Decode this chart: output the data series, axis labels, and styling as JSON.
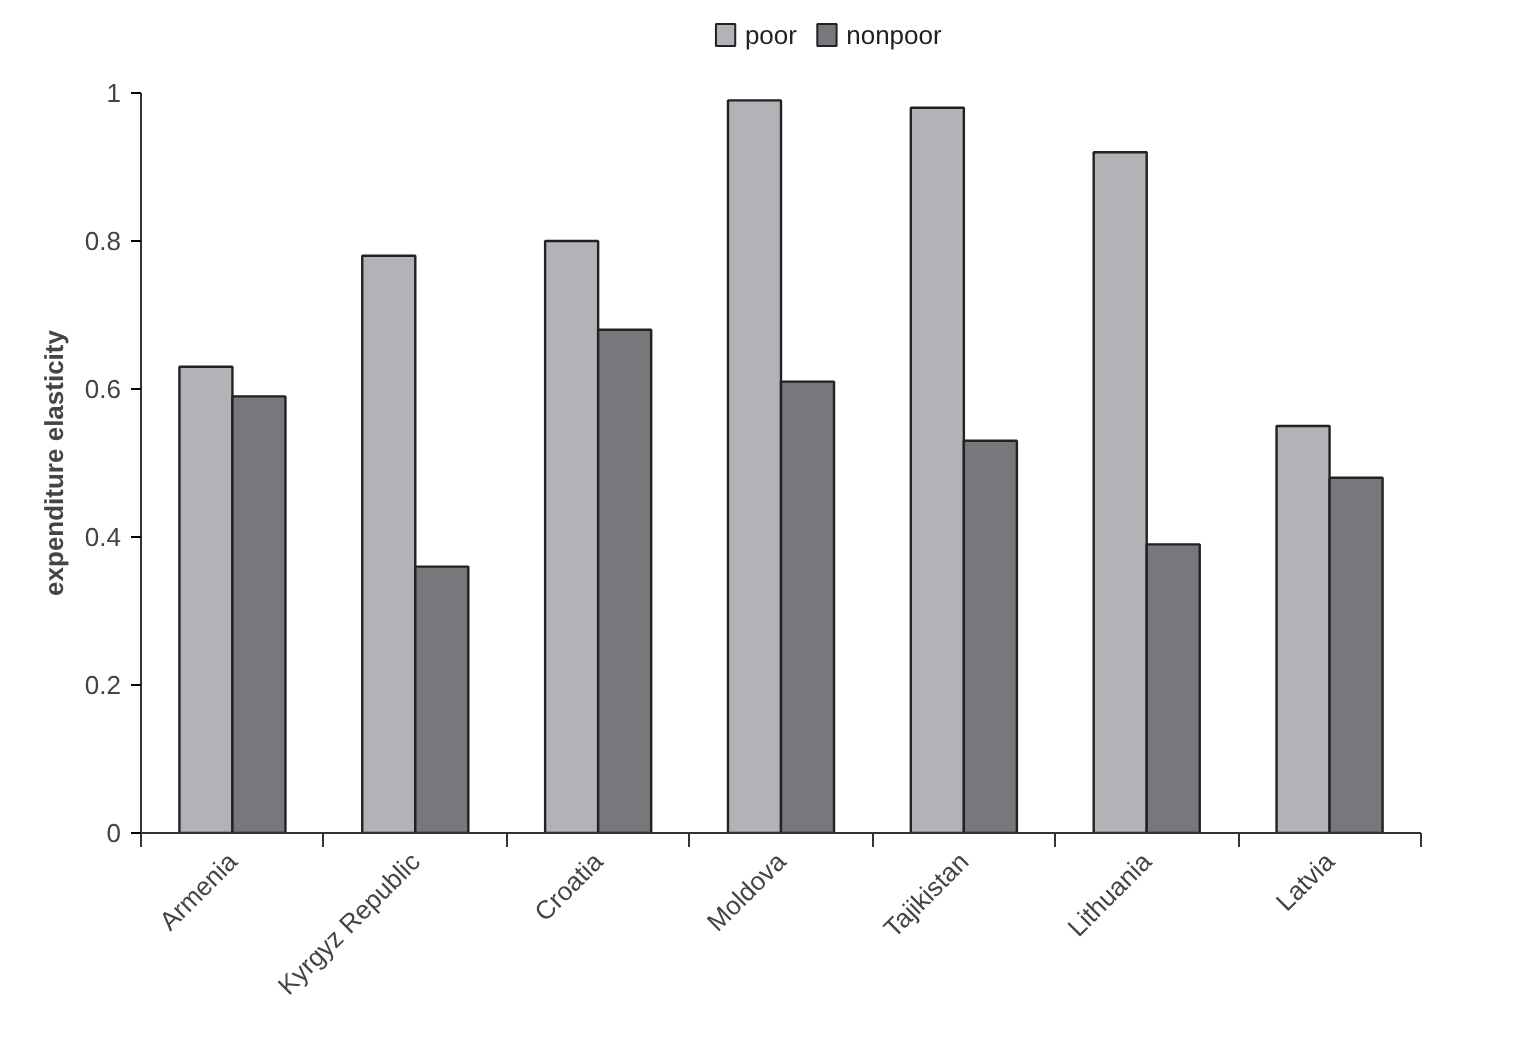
{
  "chart_data": {
    "type": "bar",
    "ylabel": "expenditure elasticity",
    "categories": [
      "Armenia",
      "Kyrgyz Republic",
      "Croatia",
      "Moldova",
      "Tajikistan",
      "Lithuania",
      "Latvia"
    ],
    "series": [
      {
        "name": "poor",
        "color": "#b1b3b6",
        "values": [
          0.63,
          0.78,
          0.8,
          0.99,
          0.98,
          0.92,
          0.55
        ]
      },
      {
        "name": "nonpoor",
        "color": "#77787b",
        "values": [
          0.59,
          0.36,
          0.68,
          0.61,
          0.53,
          0.39,
          0.48
        ]
      }
    ],
    "ylim": [
      0,
      1
    ],
    "yticks": [
      0,
      0.2,
      0.4,
      0.6,
      0.8,
      1
    ],
    "grid": false,
    "legend": "top"
  }
}
